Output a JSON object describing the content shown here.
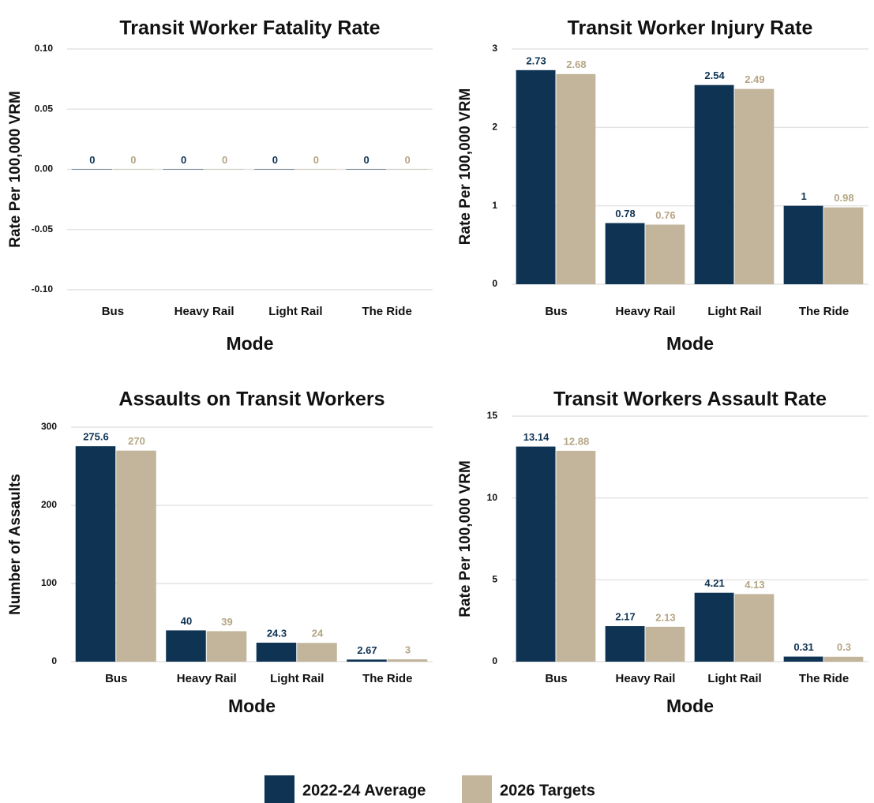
{
  "chart_data": [
    {
      "type": "bar",
      "title": "Transit Worker Fatality Rate",
      "x_label": "Mode",
      "y_label": "Rate Per 100,000 VRM",
      "categories": [
        "Bus",
        "Heavy Rail",
        "Light Rail",
        "The Ride"
      ],
      "series": [
        {
          "values": [
            0,
            0,
            0,
            0
          ]
        },
        {
          "values": [
            0,
            0,
            0,
            0
          ]
        }
      ],
      "ylim": [
        -0.1,
        0.1
      ],
      "yticks": [
        {
          "value": -0.1,
          "label": "-0.10"
        },
        {
          "value": -0.05,
          "label": "-0.05"
        },
        {
          "value": 0,
          "label": "0.00"
        },
        {
          "value": 0.05,
          "label": "0.05"
        },
        {
          "value": 0.1,
          "label": "0.10"
        }
      ],
      "grid": true
    },
    {
      "type": "bar",
      "title": "Transit Worker Injury Rate",
      "x_label": "Mode",
      "y_label": "Rate Per 100,000 VRM",
      "categories": [
        "Bus",
        "Heavy Rail",
        "Light Rail",
        "The Ride"
      ],
      "series": [
        {
          "values": [
            2.73,
            0.78,
            2.54,
            1
          ]
        },
        {
          "values": [
            2.68,
            0.76,
            2.49,
            0.98
          ]
        }
      ],
      "ylim": [
        0,
        3
      ],
      "yticks": [
        0,
        1,
        2,
        3
      ],
      "grid": true
    },
    {
      "type": "bar",
      "title": "Assaults on Transit Workers",
      "x_label": "Mode",
      "y_label": "Number of Assaults",
      "categories": [
        "Bus",
        "Heavy Rail",
        "Light Rail",
        "The Ride"
      ],
      "series": [
        {
          "values": [
            275.6,
            40,
            24.3,
            2.67
          ]
        },
        {
          "values": [
            270,
            39,
            24,
            3
          ]
        }
      ],
      "ylim": [
        0,
        300
      ],
      "yticks": [
        0,
        100,
        200,
        300
      ],
      "grid": true
    },
    {
      "type": "bar",
      "title": "Transit Workers Assault Rate",
      "x_label": "Mode",
      "y_label": "Rate Per 100,000 VRM",
      "categories": [
        "Bus",
        "Heavy Rail",
        "Light Rail",
        "The Ride"
      ],
      "series": [
        {
          "values": [
            13.14,
            2.17,
            4.21,
            0.31
          ]
        },
        {
          "values": [
            12.88,
            2.13,
            4.13,
            0.3
          ]
        }
      ],
      "ylim": [
        0,
        15
      ],
      "yticks": [
        0,
        5,
        10,
        15
      ],
      "grid": true
    }
  ],
  "legend": {
    "position": "bottom",
    "items": [
      {
        "name": "2022-24 Average",
        "color": "#0e3353"
      },
      {
        "name": "2026 Targets",
        "color": "#c2b59b"
      }
    ]
  }
}
